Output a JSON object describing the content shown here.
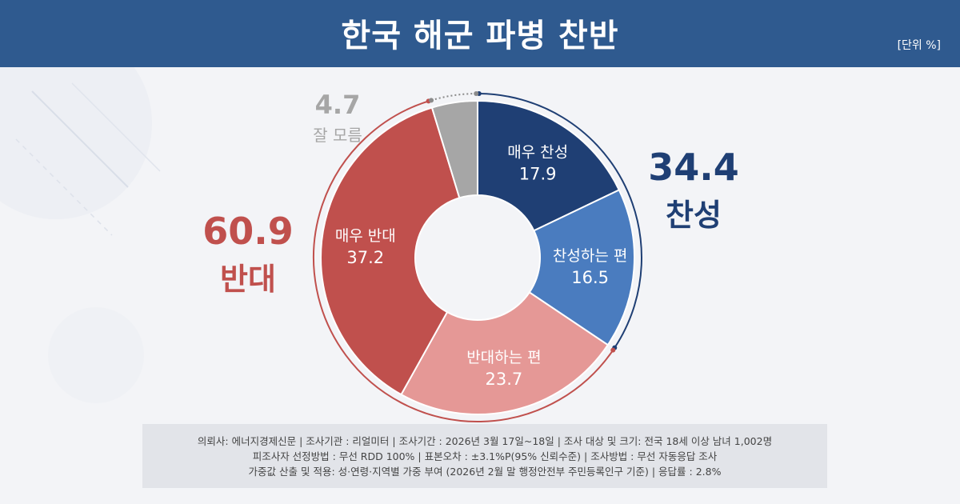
{
  "header": {
    "title": "한국 해군 파병 찬반",
    "unit": "[단위 %]"
  },
  "summary": {
    "support": {
      "value": "34.4",
      "label": "찬성",
      "color": "#1f3f74"
    },
    "oppose": {
      "value": "60.9",
      "label": "반대",
      "color": "#c0504d"
    },
    "unknown": {
      "value": "4.7",
      "label": "잘 모름",
      "color": "#a6a6a6"
    }
  },
  "chart_data": {
    "type": "pie",
    "title": "한국 해군 파병 찬반",
    "unit": "%",
    "slices": [
      {
        "label": "매우 찬성",
        "value": 17.9,
        "color": "#1f3f74"
      },
      {
        "label": "찬성하는 편",
        "value": 16.5,
        "color": "#4a7cbf"
      },
      {
        "label": "반대하는 편",
        "value": 23.7,
        "color": "#e59896"
      },
      {
        "label": "매우 반대",
        "value": 37.2,
        "color": "#c0504d"
      },
      {
        "label": "잘 모름",
        "value": 4.7,
        "color": "#a6a6a6"
      }
    ],
    "groups": [
      {
        "label": "찬성",
        "value": 34.4
      },
      {
        "label": "반대",
        "value": 60.9
      },
      {
        "label": "잘 모름",
        "value": 4.7
      }
    ]
  },
  "footnote": {
    "line1": "의뢰사: 에너지경제신문 | 조사기관 : 리얼미터 | 조사기간 : 2026년 3월 17일~18일 | 조사 대상 및 크기: 전국 18세 이상 남녀 1,002명",
    "line2": "피조사자 선정방법 : 무선 RDD 100% | 표본오차 : ±3.1%P(95% 신뢰수준) | 조사방법 : 무선 자동응답 조사",
    "line3": "가중값 산출 및 적용: 성·연령·지역별 가중 부여 (2026년 2월 말 행정안전부 주민등록인구 기준) | 응답률 : 2.8%"
  }
}
